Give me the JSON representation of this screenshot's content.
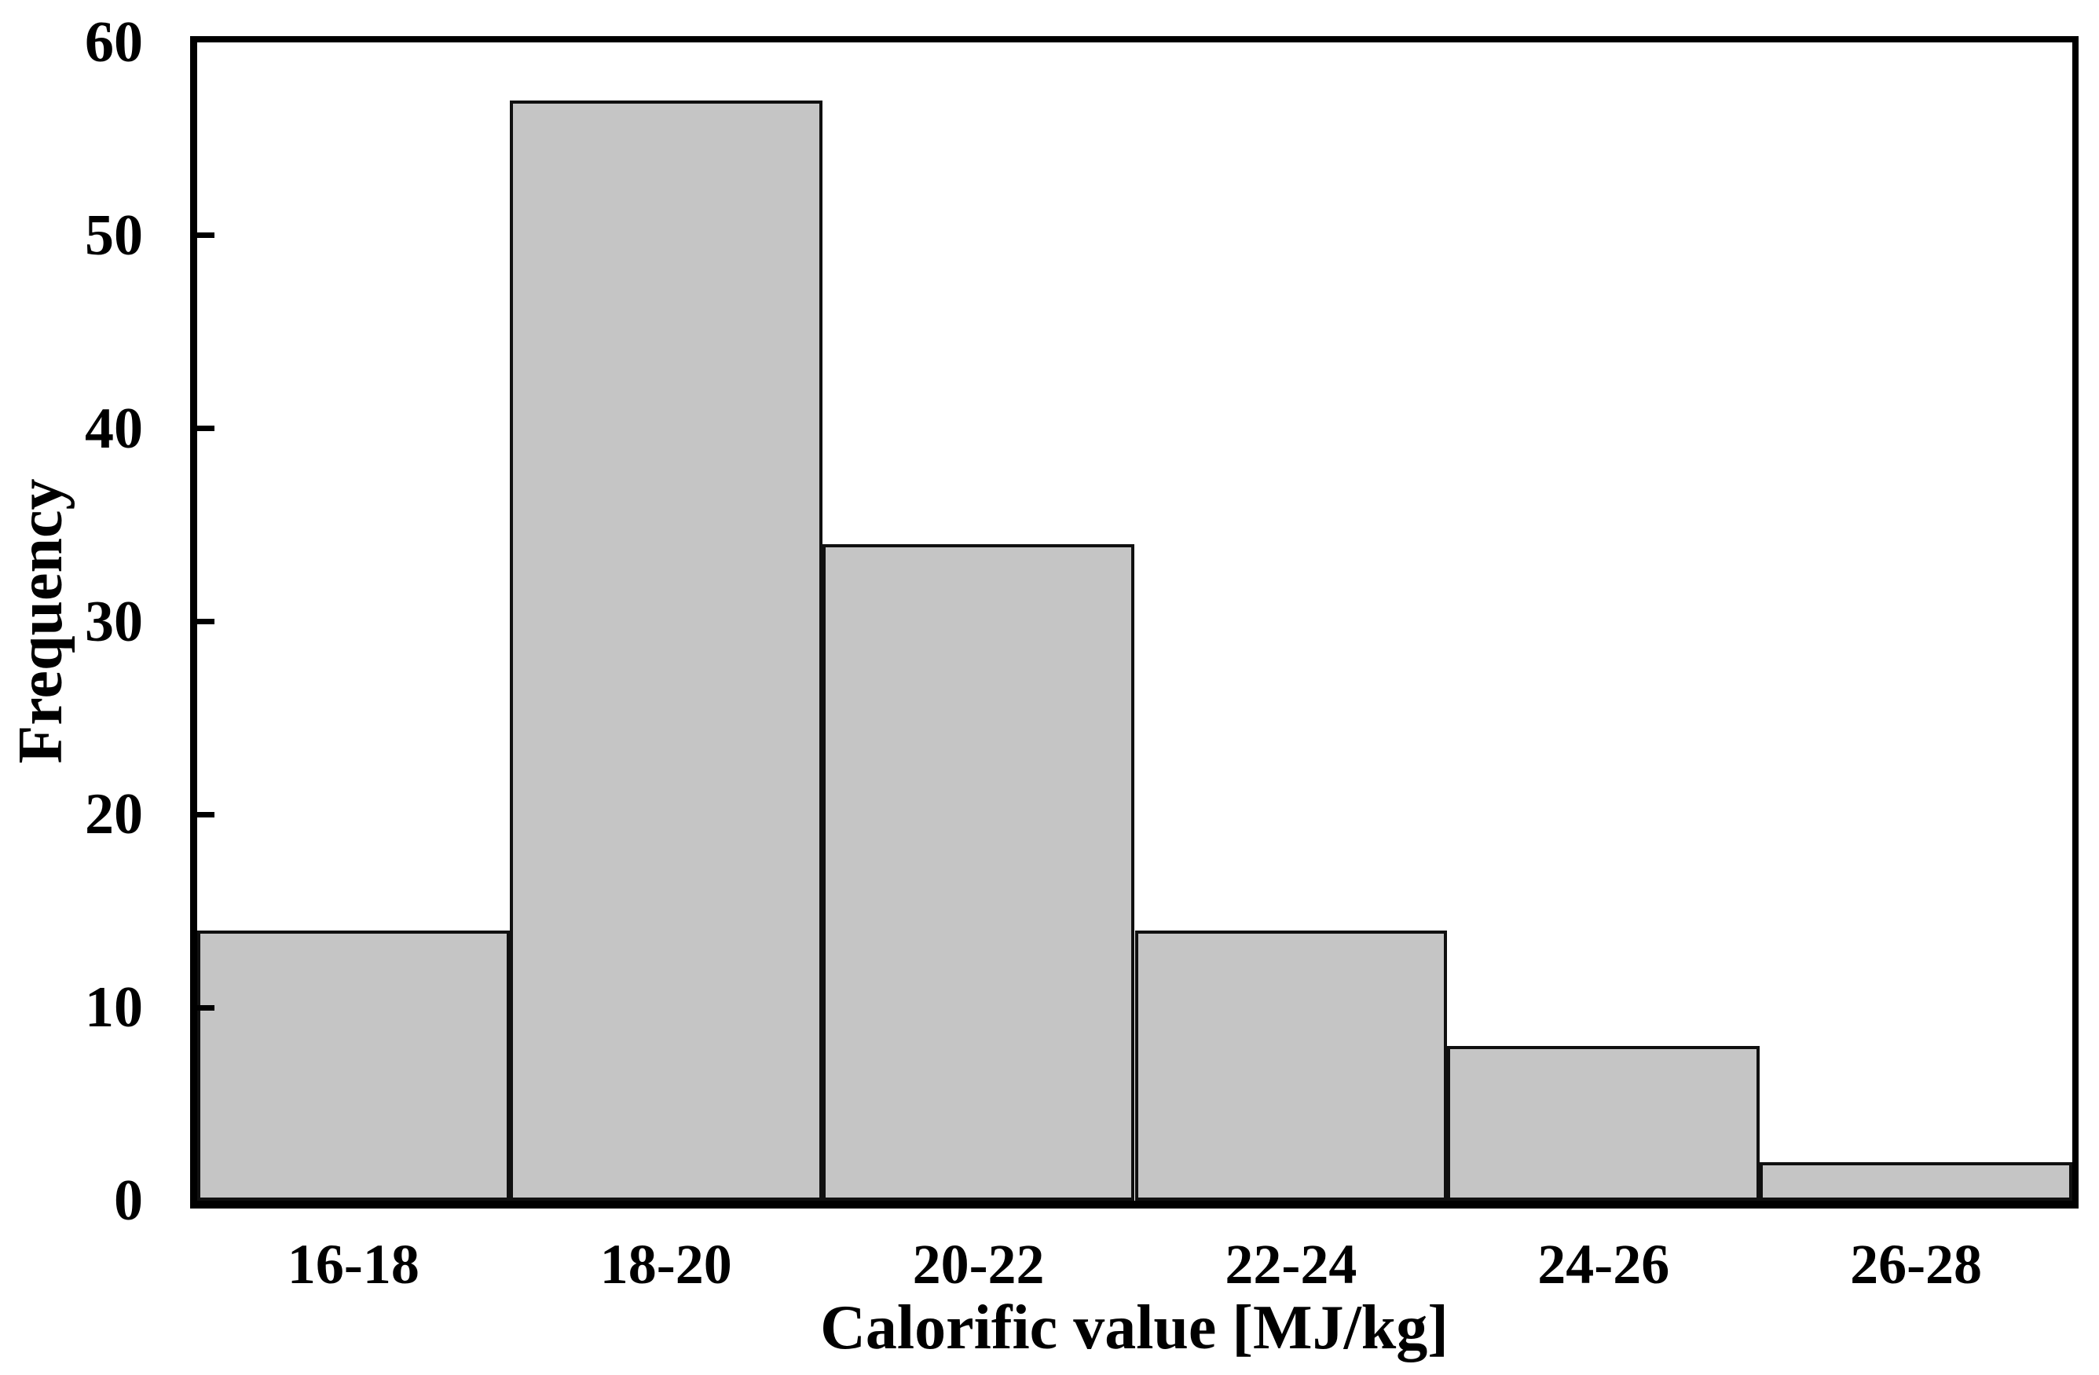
{
  "figure": {
    "background": "#ffffff",
    "text_color": "#000000"
  },
  "chart_data": {
    "type": "bar",
    "title": "",
    "categories": [
      "16-18",
      "18-20",
      "20-22",
      "22-24",
      "24-26",
      "26-28"
    ],
    "values": [
      14,
      57,
      34,
      14,
      8,
      2
    ],
    "xlabel": "Calorific value [MJ/kg]",
    "ylabel": "Frequency",
    "ylim": [
      0,
      60
    ],
    "yticks": [
      0,
      10,
      20,
      30,
      40,
      50,
      60
    ],
    "grid": "off",
    "legend": "none",
    "bar_fill": "#c5c5c5",
    "bar_border": "#101010",
    "axis_color": "#000000"
  }
}
